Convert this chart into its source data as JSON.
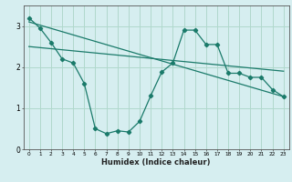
{
  "title": "",
  "xlabel": "Humidex (Indice chaleur)",
  "bg_color": "#d6eef0",
  "grid_color": "#b0d8cc",
  "line_color": "#1a7a6a",
  "xlim": [
    -0.5,
    23.5
  ],
  "ylim": [
    0,
    3.5
  ],
  "yticks": [
    0,
    1,
    2,
    3
  ],
  "xticks": [
    0,
    1,
    2,
    3,
    4,
    5,
    6,
    7,
    8,
    9,
    10,
    11,
    12,
    13,
    14,
    15,
    16,
    17,
    18,
    19,
    20,
    21,
    22,
    23
  ],
  "curve1_x": [
    0,
    1,
    2,
    3,
    4,
    5,
    6,
    7,
    8,
    9,
    10,
    11,
    12,
    13,
    14,
    15,
    16,
    17,
    18,
    19,
    20,
    21,
    22,
    23
  ],
  "curve1_y": [
    3.2,
    2.95,
    2.6,
    2.2,
    2.1,
    1.6,
    0.5,
    0.38,
    0.45,
    0.42,
    0.68,
    1.3,
    1.88,
    2.1,
    2.9,
    2.9,
    2.55,
    2.55,
    1.85,
    1.85,
    1.75,
    1.75,
    1.45,
    1.28
  ],
  "curve2_x": [
    0,
    23
  ],
  "curve2_y": [
    3.1,
    1.28
  ],
  "curve3_x": [
    0,
    23
  ],
  "curve3_y": [
    2.5,
    1.9
  ]
}
